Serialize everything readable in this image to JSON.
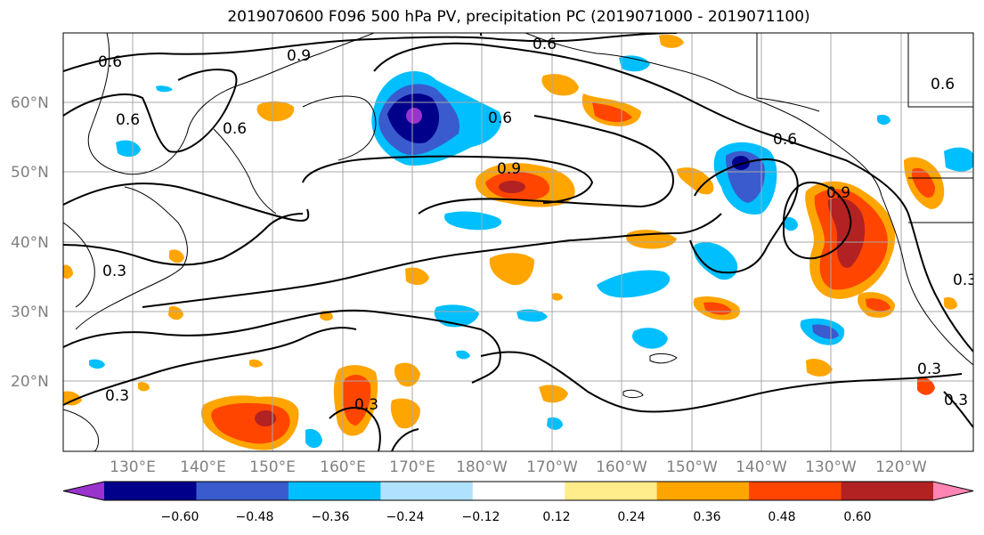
{
  "title": "2019070600 F096 500 hPa PV, precipitation PC (2019071000 - 2019071100)",
  "lat_labels": [
    "60°N",
    "50°N",
    "40°N",
    "30°N",
    "20°N"
  ],
  "lon_labels": [
    "130°E",
    "140°E",
    "150°E",
    "160°E",
    "170°E",
    "180°W",
    "170°W",
    "160°W",
    "150°W",
    "140°W",
    "130°W",
    "120°W"
  ],
  "contour_labels": [
    "0.6",
    "0.9",
    "0.6",
    "0.6",
    "0.6",
    "0.6",
    "0.9",
    "0.9",
    "0.6",
    "0.6",
    "0.3",
    "0.3",
    "0.3",
    "0.3",
    "0.3",
    "0.3"
  ],
  "colorbar": {
    "tick_labels": [
      "−0.60",
      "−0.48",
      "−0.36",
      "−0.24",
      "−0.12",
      "0.12",
      "0.24",
      "0.36",
      "0.48",
      "0.60"
    ],
    "colors": [
      "#9a32cd",
      "#00008b",
      "#3a5bcd",
      "#00bfff",
      "#b0e2ff",
      "#ffffff",
      "#ffec8b",
      "#ffa500",
      "#ff4500",
      "#b22222",
      "#ff86b4"
    ]
  }
}
